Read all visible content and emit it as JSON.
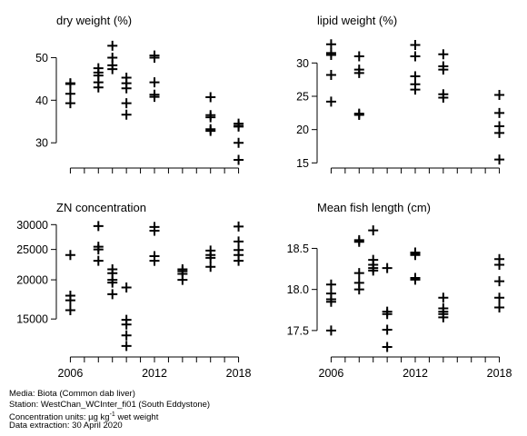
{
  "chart_data": [
    {
      "type": "scatter",
      "title": "dry weight (%)",
      "xlim": [
        2005,
        2019
      ],
      "ylim": [
        24.5,
        55
      ],
      "xticks": [
        2006,
        2007,
        2008,
        2009,
        2010,
        2011,
        2012,
        2013,
        2014,
        2015,
        2016,
        2017,
        2018
      ],
      "xtick_labels": [],
      "yticks": [
        30,
        40,
        50
      ],
      "ytick_labels": [
        "30",
        "40",
        "50"
      ],
      "points": [
        [
          2006,
          44
        ],
        [
          2006,
          43.8
        ],
        [
          2006,
          41.5
        ],
        [
          2006,
          39.3
        ],
        [
          2008,
          47.5
        ],
        [
          2008,
          46.5
        ],
        [
          2008,
          45.8
        ],
        [
          2008,
          44.2
        ],
        [
          2008,
          43
        ],
        [
          2009,
          52.8
        ],
        [
          2009,
          50
        ],
        [
          2009,
          48.2
        ],
        [
          2009,
          47.3
        ],
        [
          2010,
          45.3
        ],
        [
          2010,
          44
        ],
        [
          2010,
          42.8
        ],
        [
          2010,
          39.3
        ],
        [
          2010,
          36.6
        ],
        [
          2012,
          50.5
        ],
        [
          2012,
          50
        ],
        [
          2012,
          44.2
        ],
        [
          2012,
          41.3
        ],
        [
          2012,
          40.8
        ],
        [
          2016,
          40.7
        ],
        [
          2016,
          36.5
        ],
        [
          2016,
          36
        ],
        [
          2016,
          33.2
        ],
        [
          2016,
          32.8
        ],
        [
          2018,
          34.5
        ],
        [
          2018,
          34
        ],
        [
          2018,
          33.8
        ],
        [
          2018,
          30
        ],
        [
          2018,
          26
        ]
      ]
    },
    {
      "type": "scatter",
      "title": "lipid weight (%)",
      "xlim": [
        2005,
        2019
      ],
      "ylim": [
        14.5,
        34
      ],
      "xticks": [
        2006,
        2007,
        2008,
        2009,
        2010,
        2011,
        2012,
        2013,
        2014,
        2015,
        2016,
        2017,
        2018
      ],
      "xtick_labels": [],
      "yticks": [
        15,
        20,
        25,
        30
      ],
      "ytick_labels": [
        "15",
        "20",
        "25",
        "30"
      ],
      "points": [
        [
          2006,
          32.8
        ],
        [
          2006,
          31.5
        ],
        [
          2006,
          31.2
        ],
        [
          2006,
          28.2
        ],
        [
          2006,
          24.2
        ],
        [
          2008,
          31
        ],
        [
          2008,
          29
        ],
        [
          2008,
          28.5
        ],
        [
          2008,
          22.4
        ],
        [
          2008,
          22.2
        ],
        [
          2012,
          32.7
        ],
        [
          2012,
          31
        ],
        [
          2012,
          28
        ],
        [
          2012,
          26.8
        ],
        [
          2012,
          26
        ],
        [
          2014,
          31.3
        ],
        [
          2014,
          29.5
        ],
        [
          2014,
          29
        ],
        [
          2014,
          25.3
        ],
        [
          2014,
          24.8
        ],
        [
          2018,
          25.2
        ],
        [
          2018,
          22.5
        ],
        [
          2018,
          20.5
        ],
        [
          2018,
          19.5
        ],
        [
          2018,
          15.5
        ]
      ]
    },
    {
      "type": "scatter",
      "title": "ZN concentration",
      "xlim": [
        2005,
        2019
      ],
      "ylim": [
        11500,
        31500
      ],
      "log_y": true,
      "xticks": [
        2006,
        2007,
        2008,
        2009,
        2010,
        2011,
        2012,
        2013,
        2014,
        2015,
        2016,
        2017,
        2018
      ],
      "xtick_labels": [
        "2006",
        "",
        "",
        "",
        "",
        "",
        "2012",
        "",
        "",
        "",
        "",
        "",
        "2018"
      ],
      "yticks": [
        15000,
        20000,
        25000,
        30000
      ],
      "ytick_labels": [
        "15000",
        "20000",
        "25000",
        "30000"
      ],
      "points": [
        [
          2006,
          24000
        ],
        [
          2006,
          17800
        ],
        [
          2006,
          17200
        ],
        [
          2006,
          16000
        ],
        [
          2008,
          29700
        ],
        [
          2008,
          25500
        ],
        [
          2008,
          25000
        ],
        [
          2008,
          23000
        ],
        [
          2009,
          21600
        ],
        [
          2009,
          21000
        ],
        [
          2009,
          20000
        ],
        [
          2009,
          19600
        ],
        [
          2009,
          18000
        ],
        [
          2010,
          18900
        ],
        [
          2010,
          14900
        ],
        [
          2010,
          14400
        ],
        [
          2010,
          13300
        ],
        [
          2010,
          12300
        ],
        [
          2012,
          29500
        ],
        [
          2012,
          28700
        ],
        [
          2012,
          23800
        ],
        [
          2012,
          23000
        ],
        [
          2014,
          21600
        ],
        [
          2014,
          21300
        ],
        [
          2014,
          20900
        ],
        [
          2014,
          20000
        ],
        [
          2016,
          24800
        ],
        [
          2016,
          24000
        ],
        [
          2016,
          23500
        ],
        [
          2016,
          22000
        ],
        [
          2018,
          29600
        ],
        [
          2018,
          26500
        ],
        [
          2018,
          24900
        ],
        [
          2018,
          24000
        ],
        [
          2018,
          23000
        ]
      ]
    },
    {
      "type": "scatter",
      "title": "Mean fish length (cm)",
      "xlim": [
        2005,
        2019
      ],
      "ylim": [
        17.2,
        18.87
      ],
      "xticks": [
        2006,
        2007,
        2008,
        2009,
        2010,
        2011,
        2012,
        2013,
        2014,
        2015,
        2016,
        2017,
        2018
      ],
      "xtick_labels": [
        "2006",
        "",
        "",
        "",
        "",
        "",
        "2012",
        "",
        "",
        "",
        "",
        "",
        "2018"
      ],
      "yticks": [
        17.5,
        18.0,
        18.5
      ],
      "ytick_labels": [
        "17.5",
        "18.0",
        "18.5"
      ],
      "points": [
        [
          2006,
          18.06
        ],
        [
          2006,
          17.95
        ],
        [
          2006,
          17.88
        ],
        [
          2006,
          17.85
        ],
        [
          2006,
          17.5
        ],
        [
          2008,
          18.6
        ],
        [
          2008,
          18.58
        ],
        [
          2008,
          18.2
        ],
        [
          2008,
          18.08
        ],
        [
          2008,
          18.0
        ],
        [
          2009,
          18.72
        ],
        [
          2009,
          18.36
        ],
        [
          2009,
          18.3
        ],
        [
          2009,
          18.26
        ],
        [
          2009,
          18.23
        ],
        [
          2010,
          18.26
        ],
        [
          2010,
          17.73
        ],
        [
          2010,
          17.7
        ],
        [
          2010,
          17.51
        ],
        [
          2010,
          17.3
        ],
        [
          2012,
          18.45
        ],
        [
          2012,
          18.43
        ],
        [
          2012,
          18.42
        ],
        [
          2012,
          18.14
        ],
        [
          2012,
          18.12
        ],
        [
          2014,
          17.9
        ],
        [
          2014,
          17.77
        ],
        [
          2014,
          17.73
        ],
        [
          2014,
          17.7
        ],
        [
          2014,
          17.66
        ],
        [
          2018,
          18.37
        ],
        [
          2018,
          18.3
        ],
        [
          2018,
          18.1
        ],
        [
          2018,
          17.9
        ],
        [
          2018,
          17.78
        ]
      ]
    }
  ],
  "footer": {
    "media": "Media: Biota (Common dab liver)",
    "station": "Station: WestChan_WCInter_fi01 (South Eddystone)",
    "units_prefix": "Concentration units:  µg kg",
    "units_sup": "-1",
    "units_suffix": " wet weight",
    "extraction": "Data extraction: 30 April 2020"
  }
}
